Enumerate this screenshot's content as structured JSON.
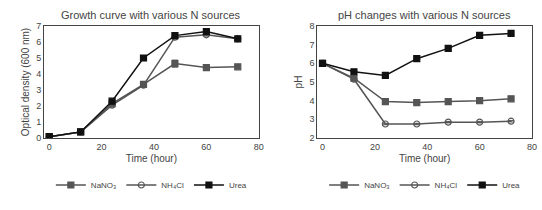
{
  "chart_data": [
    {
      "type": "line",
      "title": "Growth curve with various N sources",
      "xlabel": "Time (hour)",
      "ylabel": "Optical density (600 nm)",
      "x": [
        0,
        12,
        24,
        36,
        48,
        60,
        72
      ],
      "series": [
        {
          "name": "NaNO₃",
          "color": "#555555",
          "marker": "square",
          "values": [
            0.08,
            0.38,
            2.15,
            3.35,
            4.65,
            4.4,
            4.45
          ],
          "error": [
            0.0,
            0.03,
            0.12,
            0.12,
            0.22,
            0.1,
            0.08
          ]
        },
        {
          "name": "NH₄Cl",
          "color": "#555555",
          "marker": "circle-open",
          "values": [
            0.08,
            0.38,
            2.05,
            3.3,
            6.3,
            6.45,
            6.2
          ],
          "error": [
            0.0,
            0.03,
            0.1,
            0.1,
            0.1,
            0.08,
            0.1
          ]
        },
        {
          "name": "Urea",
          "color": "#111111",
          "marker": "square",
          "values": [
            0.08,
            0.38,
            2.3,
            5.0,
            6.4,
            6.65,
            6.2
          ],
          "error": [
            0.0,
            0.03,
            0.1,
            0.15,
            0.1,
            0.08,
            0.1
          ]
        }
      ],
      "xlim": [
        -2,
        80
      ],
      "xticks": [
        0,
        20,
        40,
        60,
        80
      ],
      "ylim": [
        0,
        7
      ],
      "yticks": [
        0,
        1,
        2,
        3,
        4,
        5,
        6,
        7
      ],
      "grid": false,
      "legend": "bottom"
    },
    {
      "type": "line",
      "title": "pH changes with various N sources",
      "xlabel": "Time (hour)",
      "ylabel": "pH",
      "x": [
        0,
        12,
        24,
        36,
        48,
        60,
        72
      ],
      "series": [
        {
          "name": "NaNO₃",
          "color": "#555555",
          "marker": "square",
          "values": [
            6.0,
            5.2,
            3.95,
            3.9,
            3.95,
            4.0,
            4.1
          ],
          "error": [
            0.0,
            0.04,
            0.04,
            0.04,
            0.04,
            0.04,
            0.04
          ]
        },
        {
          "name": "NH₄Cl",
          "color": "#555555",
          "marker": "circle-open",
          "values": [
            6.0,
            5.15,
            2.75,
            2.75,
            2.85,
            2.85,
            2.9
          ],
          "error": [
            0.0,
            0.04,
            0.04,
            0.04,
            0.04,
            0.04,
            0.04
          ]
        },
        {
          "name": "Urea",
          "color": "#111111",
          "marker": "square",
          "values": [
            6.0,
            5.55,
            5.35,
            6.25,
            6.8,
            7.5,
            7.6
          ],
          "error": [
            0.0,
            0.04,
            0.04,
            0.04,
            0.04,
            0.04,
            0.04
          ]
        }
      ],
      "xlim": [
        -2,
        80
      ],
      "xticks": [
        0,
        20,
        40,
        60,
        80
      ],
      "ylim": [
        2,
        8
      ],
      "yticks": [
        2,
        3,
        4,
        5,
        6,
        7,
        8
      ],
      "grid": false,
      "legend": "bottom"
    }
  ]
}
